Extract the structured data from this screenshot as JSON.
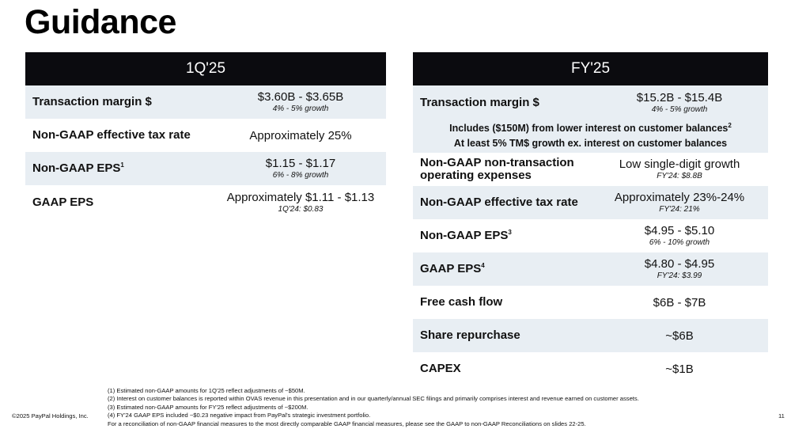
{
  "title": "Guidance",
  "left": {
    "header": "1Q'25",
    "rows": [
      {
        "label": "Transaction margin $",
        "sup": "",
        "value": "$3.60B - $3.65B",
        "sub": "4% - 5% growth"
      },
      {
        "label": "Non-GAAP effective tax rate",
        "sup": "",
        "value": "Approximately 25%",
        "sub": ""
      },
      {
        "label": "Non-GAAP EPS",
        "sup": "1",
        "value": "$1.15 - $1.17",
        "sub": "6% - 8% growth"
      },
      {
        "label": "GAAP EPS",
        "sup": "",
        "value": "Approximately $1.11 - $1.13",
        "sub": "1Q'24: $0.83"
      }
    ]
  },
  "right": {
    "header": "FY'25",
    "rows": [
      {
        "label": "Transaction margin $",
        "sup": "",
        "value": "$15.2B - $15.4B",
        "sub": "4% - 5% growth"
      },
      {
        "label": "Non-GAAP non-transaction operating expenses",
        "sup": "",
        "value": "Low single-digit growth",
        "sub": "FY'24: $8.8B"
      },
      {
        "label": "Non-GAAP effective tax rate",
        "sup": "",
        "value": "Approximately 23%-24%",
        "sub": "FY'24: 21%"
      },
      {
        "label": "Non-GAAP EPS",
        "sup": "3",
        "value": "$4.95 - $5.10",
        "sub": "6% - 10% growth"
      },
      {
        "label": "GAAP EPS",
        "sup": "4",
        "value": "$4.80 - $4.95",
        "sub": "FY'24: $3.99"
      },
      {
        "label": "Free cash flow",
        "sup": "",
        "value": "$6B - $7B",
        "sub": ""
      },
      {
        "label": "Share repurchase",
        "sup": "",
        "value": "~$6B",
        "sub": ""
      },
      {
        "label": "CAPEX",
        "sup": "",
        "value": "~$1B",
        "sub": ""
      }
    ],
    "note": {
      "line1": "Includes ($150M) from lower interest on customer balances",
      "line1_sup": "2",
      "line2": "At least 5% TM$ growth ex. interest on customer balances"
    }
  },
  "footnotes": [
    "(1) Estimated non-GAAP amounts for 1Q'25 reflect adjustments of ~$50M.",
    "(2) Interest on customer balances is reported within OVAS revenue in this presentation and in our quarterly/annual SEC filings and primarily comprises interest and revenue earned on customer assets.",
    "(3) Estimated non-GAAP amounts for FY'25 reflect adjustments of ~$200M.",
    "(4) FY'24 GAAP EPS included ~$0.23 negative impact from PayPal's strategic investment portfolio.",
    "For a reconciliation of non-GAAP financial measures to the most directly comparable GAAP financial measures, please see the GAAP to non-GAAP Reconciliations on slides 22-25."
  ],
  "copyright": "©2025 PayPal Holdings, Inc.",
  "page_number": "11",
  "colors": {
    "header_bg": "#0b0b0f",
    "row_shade": "#e8eef3"
  }
}
